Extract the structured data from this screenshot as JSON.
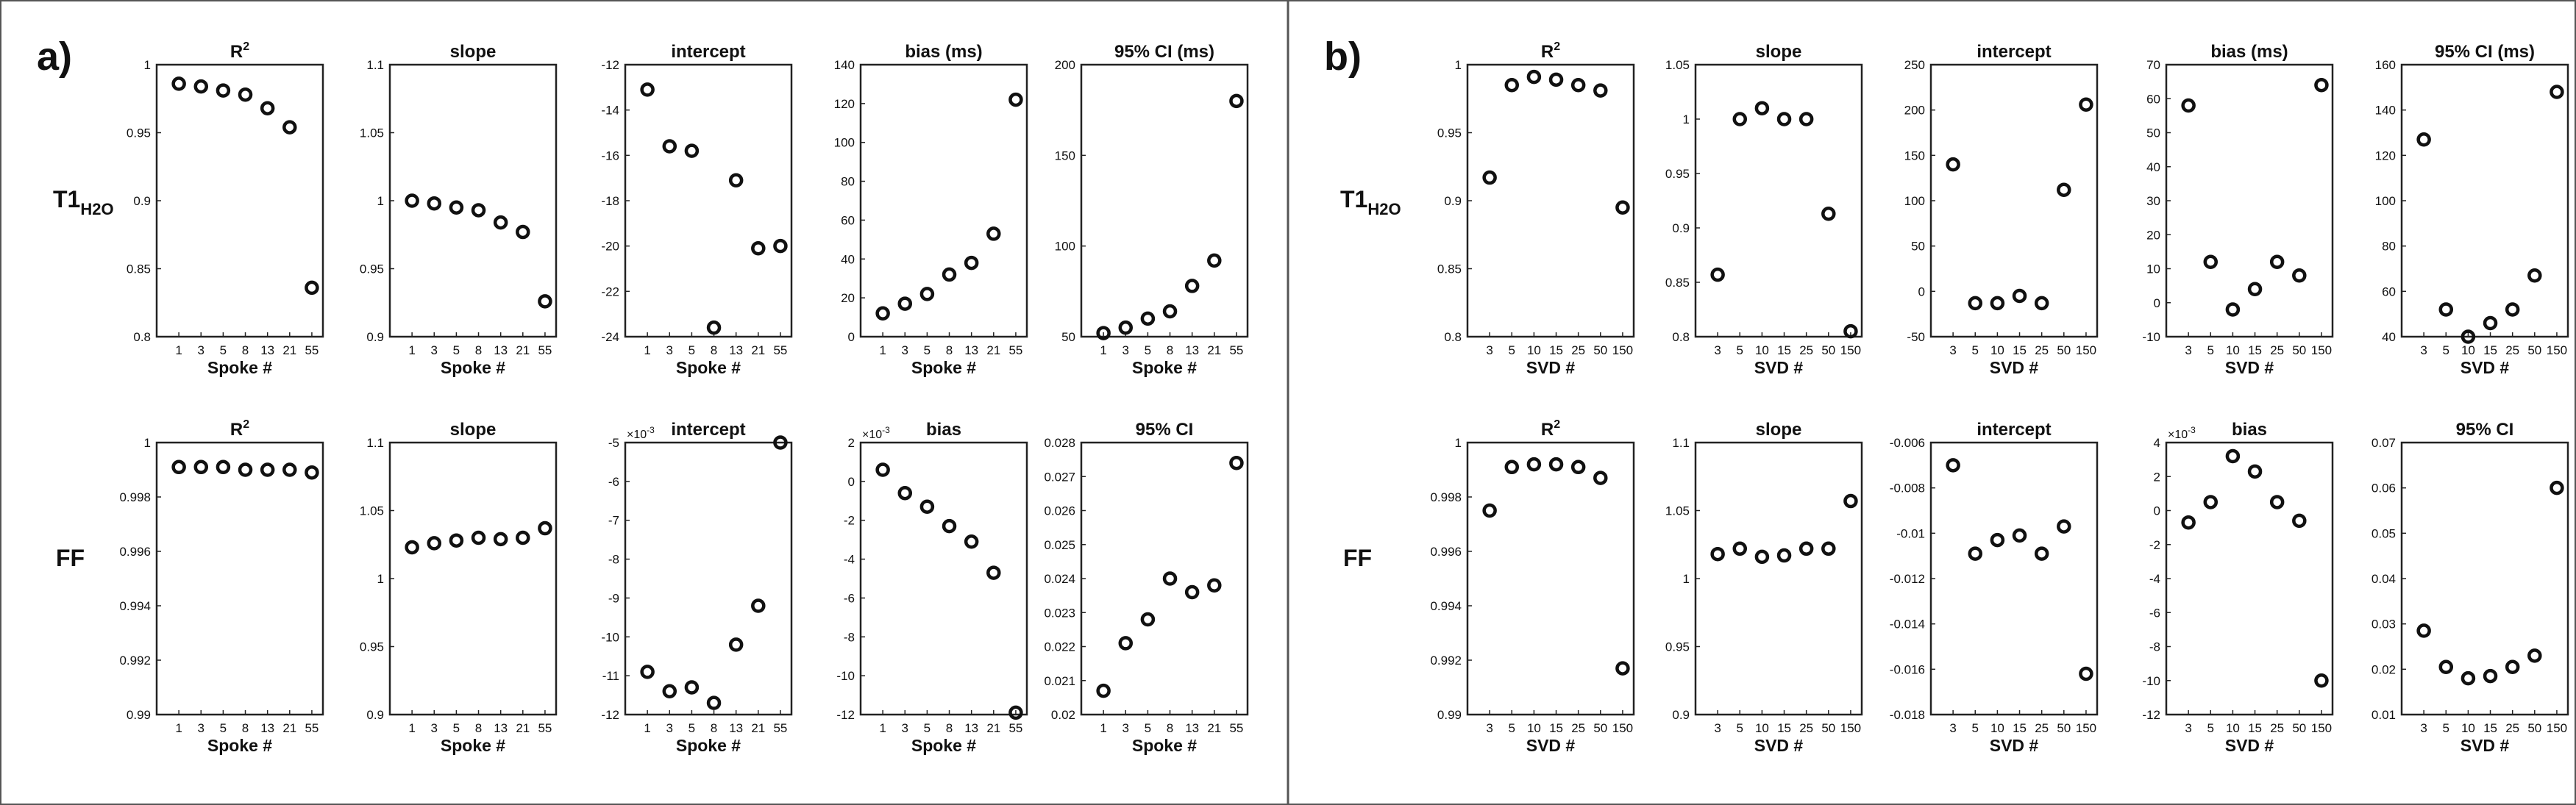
{
  "figure": {
    "panel_labels": [
      "a)",
      "b)"
    ],
    "row_labels": [
      {
        "main": "T1",
        "sub": "H2O"
      },
      {
        "main": "FF",
        "sub": ""
      }
    ]
  },
  "colors": {
    "marker": "#111111",
    "axis": "#222222",
    "divider": "#555555",
    "background": "#ffffff"
  },
  "chart_data": [
    {
      "type": "scatter",
      "panel": "a",
      "row": 0,
      "col": 0,
      "title": "R",
      "title_sup": "2",
      "xlabel": "Spoke #",
      "categories": [
        "1",
        "3",
        "5",
        "8",
        "13",
        "21",
        "55"
      ],
      "values": [
        0.986,
        0.984,
        0.981,
        0.978,
        0.968,
        0.954,
        0.836
      ],
      "ylim": [
        0.8,
        1.0
      ],
      "yticks": [
        "0.8",
        "0.85",
        "0.9",
        "0.95",
        "1"
      ]
    },
    {
      "type": "scatter",
      "panel": "a",
      "row": 0,
      "col": 1,
      "title": "slope",
      "xlabel": "Spoke #",
      "categories": [
        "1",
        "3",
        "5",
        "8",
        "13",
        "21",
        "55"
      ],
      "values": [
        1.0,
        0.998,
        0.995,
        0.993,
        0.984,
        0.977,
        0.926
      ],
      "ylim": [
        0.9,
        1.1
      ],
      "yticks": [
        "0.9",
        "0.95",
        "1",
        "1.05",
        "1.1"
      ]
    },
    {
      "type": "scatter",
      "panel": "a",
      "row": 0,
      "col": 2,
      "title": "intercept",
      "xlabel": "Spoke #",
      "categories": [
        "1",
        "3",
        "5",
        "8",
        "13",
        "21",
        "55"
      ],
      "values": [
        -13.1,
        -15.6,
        -15.8,
        -23.6,
        -17.1,
        -20.1,
        -20.0
      ],
      "ylim": [
        -24,
        -12
      ],
      "yticks": [
        "-24",
        "-22",
        "-20",
        "-18",
        "-16",
        "-14",
        "-12"
      ]
    },
    {
      "type": "scatter",
      "panel": "a",
      "row": 0,
      "col": 3,
      "title": "bias (ms)",
      "xlabel": "Spoke #",
      "categories": [
        "1",
        "3",
        "5",
        "8",
        "13",
        "21",
        "55"
      ],
      "values": [
        12,
        17,
        22,
        32,
        38,
        53,
        122
      ],
      "ylim": [
        0,
        140
      ],
      "yticks": [
        "0",
        "20",
        "40",
        "60",
        "80",
        "100",
        "120",
        "140"
      ]
    },
    {
      "type": "scatter",
      "panel": "a",
      "row": 0,
      "col": 4,
      "title": "95% CI (ms)",
      "xlabel": "Spoke #",
      "categories": [
        "1",
        "3",
        "5",
        "8",
        "13",
        "21",
        "55"
      ],
      "values": [
        52,
        55,
        60,
        64,
        78,
        92,
        180
      ],
      "ylim": [
        50,
        200
      ],
      "yticks": [
        "50",
        "100",
        "150",
        "200"
      ]
    },
    {
      "type": "scatter",
      "panel": "a",
      "row": 1,
      "col": 0,
      "title": "R",
      "title_sup": "2",
      "xlabel": "Spoke #",
      "categories": [
        "1",
        "3",
        "5",
        "8",
        "13",
        "21",
        "55"
      ],
      "values": [
        0.9991,
        0.9991,
        0.9991,
        0.999,
        0.999,
        0.999,
        0.9989
      ],
      "ylim": [
        0.99,
        1.0
      ],
      "yticks": [
        "0.99",
        "0.992",
        "0.994",
        "0.996",
        "0.998",
        "1"
      ]
    },
    {
      "type": "scatter",
      "panel": "a",
      "row": 1,
      "col": 1,
      "title": "slope",
      "xlabel": "Spoke #",
      "categories": [
        "1",
        "3",
        "5",
        "8",
        "13",
        "21",
        "55"
      ],
      "values": [
        1.023,
        1.026,
        1.028,
        1.03,
        1.029,
        1.03,
        1.037
      ],
      "ylim": [
        0.9,
        1.1
      ],
      "yticks": [
        "0.9",
        "0.95",
        "1",
        "1.05",
        "1.1"
      ]
    },
    {
      "type": "scatter",
      "panel": "a",
      "row": 1,
      "col": 2,
      "title": "intercept",
      "xlabel": "Spoke #",
      "exponent": "-3",
      "categories": [
        "1",
        "3",
        "5",
        "8",
        "13",
        "21",
        "55"
      ],
      "values": [
        -10.9,
        -11.4,
        -11.3,
        -11.7,
        -10.2,
        -9.2,
        -5.0
      ],
      "ylim": [
        -12,
        -5
      ],
      "yticks": [
        "-12",
        "-11",
        "-10",
        "-9",
        "-8",
        "-7",
        "-6",
        "-5"
      ]
    },
    {
      "type": "scatter",
      "panel": "a",
      "row": 1,
      "col": 3,
      "title": "bias",
      "xlabel": "Spoke #",
      "exponent": "-3",
      "categories": [
        "1",
        "3",
        "5",
        "8",
        "13",
        "21",
        "55"
      ],
      "values": [
        0.6,
        -0.6,
        -1.3,
        -2.3,
        -3.1,
        -4.7,
        -11.9
      ],
      "ylim": [
        -12,
        2
      ],
      "yticks": [
        "-12",
        "-10",
        "-8",
        "-6",
        "-4",
        "-2",
        "0",
        "2"
      ]
    },
    {
      "type": "scatter",
      "panel": "a",
      "row": 1,
      "col": 4,
      "title": "95% CI",
      "xlabel": "Spoke #",
      "categories": [
        "1",
        "3",
        "5",
        "8",
        "13",
        "21",
        "55"
      ],
      "values": [
        0.0207,
        0.0221,
        0.0228,
        0.024,
        0.0236,
        0.0238,
        0.0274
      ],
      "ylim": [
        0.02,
        0.028
      ],
      "yticks": [
        "0.02",
        "0.021",
        "0.022",
        "0.023",
        "0.024",
        "0.025",
        "0.026",
        "0.027",
        "0.028"
      ]
    },
    {
      "type": "scatter",
      "panel": "b",
      "row": 0,
      "col": 0,
      "title": "R",
      "title_sup": "2",
      "xlabel": "SVD #",
      "categories": [
        "3",
        "5",
        "10",
        "15",
        "25",
        "50",
        "150"
      ],
      "values": [
        0.917,
        0.985,
        0.991,
        0.989,
        0.985,
        0.981,
        0.895
      ],
      "ylim": [
        0.8,
        1.0
      ],
      "yticks": [
        "0.8",
        "0.85",
        "0.9",
        "0.95",
        "1"
      ]
    },
    {
      "type": "scatter",
      "panel": "b",
      "row": 0,
      "col": 1,
      "title": "slope",
      "xlabel": "SVD #",
      "categories": [
        "3",
        "5",
        "10",
        "15",
        "25",
        "50",
        "150"
      ],
      "values": [
        0.857,
        1.0,
        1.01,
        1.0,
        1.0,
        0.913,
        0.805
      ],
      "ylim": [
        0.8,
        1.05
      ],
      "yticks": [
        "0.8",
        "0.85",
        "0.9",
        "0.95",
        "1",
        "1.05"
      ]
    },
    {
      "type": "scatter",
      "panel": "b",
      "row": 0,
      "col": 2,
      "title": "intercept",
      "xlabel": "SVD #",
      "categories": [
        "3",
        "5",
        "10",
        "15",
        "25",
        "50",
        "150"
      ],
      "values": [
        140,
        -13,
        -13,
        -5,
        -13,
        112,
        206
      ],
      "ylim": [
        -50,
        250
      ],
      "yticks": [
        "-50",
        "0",
        "50",
        "100",
        "150",
        "200",
        "250"
      ]
    },
    {
      "type": "scatter",
      "panel": "b",
      "row": 0,
      "col": 3,
      "title": "bias (ms)",
      "xlabel": "SVD #",
      "categories": [
        "3",
        "5",
        "10",
        "15",
        "25",
        "50",
        "150"
      ],
      "values": [
        58,
        12,
        -2,
        4,
        12,
        8,
        64
      ],
      "ylim": [
        -10,
        70
      ],
      "yticks": [
        "-10",
        "0",
        "10",
        "20",
        "30",
        "40",
        "50",
        "60",
        "70"
      ]
    },
    {
      "type": "scatter",
      "panel": "b",
      "row": 0,
      "col": 4,
      "title": "95% CI (ms)",
      "xlabel": "SVD #",
      "categories": [
        "3",
        "5",
        "10",
        "15",
        "25",
        "50",
        "150"
      ],
      "values": [
        127,
        52,
        40,
        46,
        52,
        67,
        148
      ],
      "ylim": [
        40,
        160
      ],
      "yticks": [
        "40",
        "60",
        "80",
        "100",
        "120",
        "140",
        "160"
      ]
    },
    {
      "type": "scatter",
      "panel": "b",
      "row": 1,
      "col": 0,
      "title": "R",
      "title_sup": "2",
      "xlabel": "SVD #",
      "categories": [
        "3",
        "5",
        "10",
        "15",
        "25",
        "50",
        "150"
      ],
      "values": [
        0.9975,
        0.9991,
        0.9992,
        0.9992,
        0.9991,
        0.9987,
        0.9917
      ],
      "ylim": [
        0.99,
        1.0
      ],
      "yticks": [
        "0.99",
        "0.992",
        "0.994",
        "0.996",
        "0.998",
        "1"
      ]
    },
    {
      "type": "scatter",
      "panel": "b",
      "row": 1,
      "col": 1,
      "title": "slope",
      "xlabel": "SVD #",
      "categories": [
        "3",
        "5",
        "10",
        "15",
        "25",
        "50",
        "150"
      ],
      "values": [
        1.018,
        1.022,
        1.016,
        1.017,
        1.022,
        1.022,
        1.057
      ],
      "ylim": [
        0.9,
        1.1
      ],
      "yticks": [
        "0.9",
        "0.95",
        "1",
        "1.05",
        "1.1"
      ]
    },
    {
      "type": "scatter",
      "panel": "b",
      "row": 1,
      "col": 2,
      "title": "intercept",
      "xlabel": "SVD #",
      "categories": [
        "3",
        "5",
        "10",
        "15",
        "25",
        "50",
        "150"
      ],
      "values": [
        -0.007,
        -0.0109,
        -0.0103,
        -0.0101,
        -0.0109,
        -0.0097,
        -0.0162
      ],
      "ylim": [
        -0.018,
        -0.006
      ],
      "yticks": [
        "-0.018",
        "-0.016",
        "-0.014",
        "-0.012",
        "-0.01",
        "-0.008",
        "-0.006"
      ]
    },
    {
      "type": "scatter",
      "panel": "b",
      "row": 1,
      "col": 3,
      "title": "bias",
      "xlabel": "SVD #",
      "exponent": "-3",
      "categories": [
        "3",
        "5",
        "10",
        "15",
        "25",
        "50",
        "150"
      ],
      "values": [
        -0.7,
        0.5,
        3.2,
        2.3,
        0.5,
        -0.6,
        -10.0
      ],
      "ylim": [
        -12,
        4
      ],
      "yticks": [
        "-12",
        "-10",
        "-8",
        "-6",
        "-4",
        "-2",
        "0",
        "2",
        "4"
      ]
    },
    {
      "type": "scatter",
      "panel": "b",
      "row": 1,
      "col": 4,
      "title": "95% CI",
      "xlabel": "SVD #",
      "categories": [
        "3",
        "5",
        "10",
        "15",
        "25",
        "50",
        "150"
      ],
      "values": [
        0.0285,
        0.0205,
        0.018,
        0.0185,
        0.0205,
        0.023,
        0.06
      ],
      "ylim": [
        0.01,
        0.07
      ],
      "yticks": [
        "0.01",
        "0.02",
        "0.03",
        "0.04",
        "0.05",
        "0.06",
        "0.07"
      ]
    }
  ]
}
